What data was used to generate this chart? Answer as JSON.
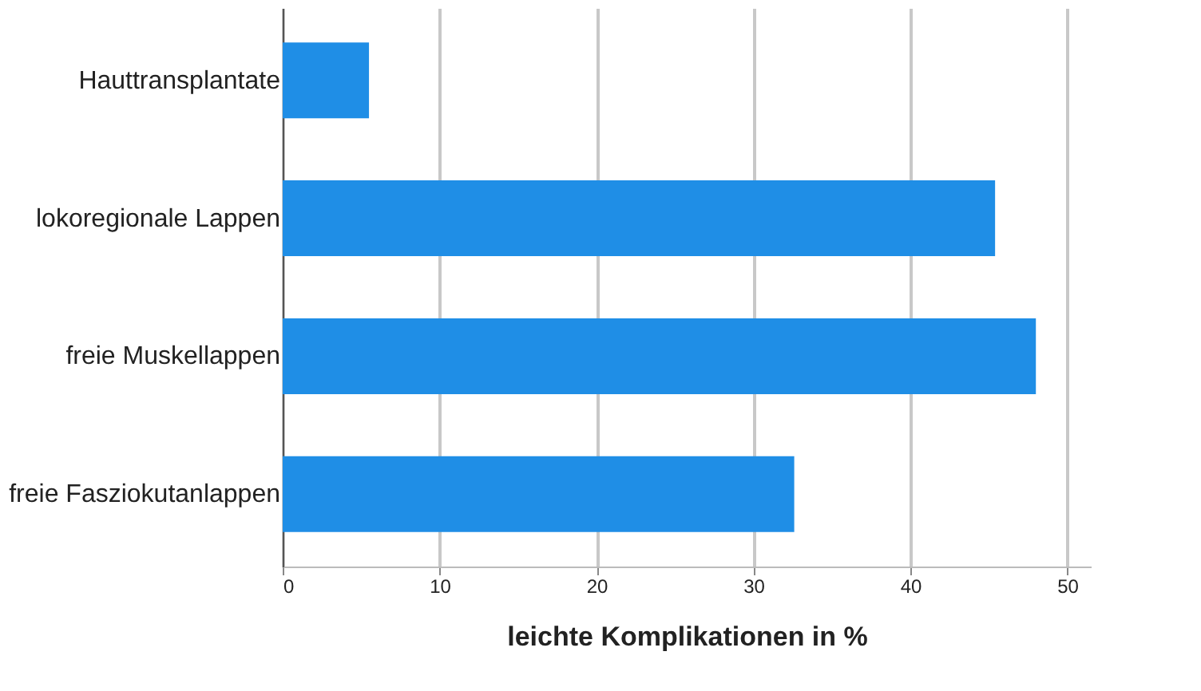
{
  "chart_data": {
    "type": "bar",
    "orientation": "horizontal",
    "xlabel": "leichte Komplikationen in %",
    "categories": [
      "Hauttransplantate",
      "lokoregionale Lappen",
      "freie Muskellappen",
      "freie Fasziokutanlappen"
    ],
    "values": [
      5.5,
      45.4,
      48.0,
      32.6
    ],
    "color": "#1f8ee6",
    "xlim": [
      0,
      51.5
    ],
    "xticks": [
      0,
      10,
      20,
      30,
      40,
      50
    ],
    "grid": "x"
  }
}
